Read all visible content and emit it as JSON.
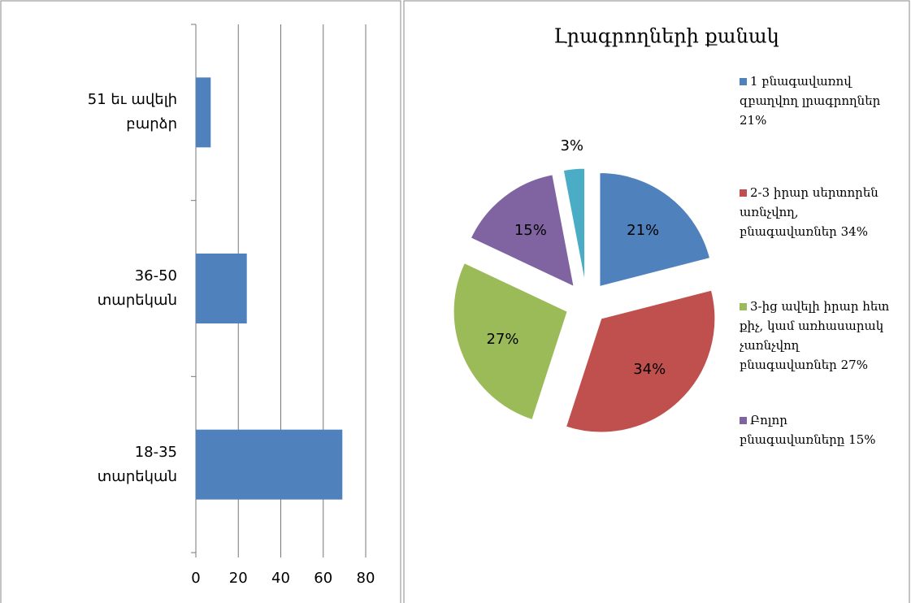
{
  "chart_data": [
    {
      "type": "hbar",
      "categories": [
        "18-35 տարեկան",
        "36-50 տարեկան",
        "51 եւ ավելի բարձր"
      ],
      "values": [
        69,
        24,
        7
      ],
      "color": "#4f81bd",
      "xlim": [
        0,
        80
      ],
      "xticks": [
        0,
        20,
        40,
        60,
        80
      ],
      "grid": true
    },
    {
      "type": "pie",
      "title": "Լրագրողների քանակ",
      "categories": [
        "1 բնագավառով զբաղվող լրագրողներ 21%",
        "2-3 իրար սերտորեն առնչվող, բնագավառներ 34%",
        "3-ից ավելի իրար հետ քիչ, կամ առհասարակ չառնչվող բնագավառներ 27%",
        "Բոլոր բնագավառները 15%",
        null
      ],
      "values": [
        21,
        34,
        27,
        15,
        3
      ],
      "value_labels": [
        "21%",
        "34%",
        "27%",
        "15%",
        "3%"
      ],
      "colors": [
        "#4f81bd",
        "#c0504d",
        "#9bbb59",
        "#8064a2",
        "#4bacc6"
      ],
      "legend": "right"
    }
  ]
}
